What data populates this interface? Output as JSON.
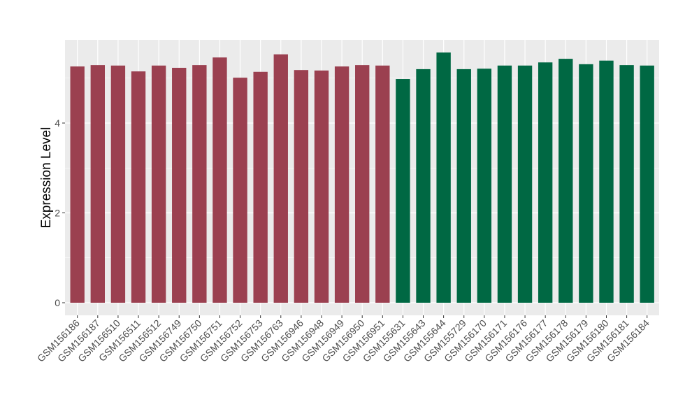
{
  "chart_data": {
    "type": "bar",
    "title": "",
    "xlabel": "",
    "ylabel": "Expression Level",
    "ylim": [
      -0.27,
      5.9
    ],
    "yticks": [
      0,
      2,
      4
    ],
    "grid": true,
    "legend": "none",
    "categories": [
      "GSM156186",
      "GSM156187",
      "GSM156510",
      "GSM156511",
      "GSM156512",
      "GSM156749",
      "GSM156750",
      "GSM156751",
      "GSM156752",
      "GSM156753",
      "GSM156763",
      "GSM156946",
      "GSM156948",
      "GSM156949",
      "GSM156950",
      "GSM156951",
      "GSM155631",
      "GSM155643",
      "GSM155644",
      "GSM155729",
      "GSM156170",
      "GSM156171",
      "GSM156176",
      "GSM156177",
      "GSM156178",
      "GSM156179",
      "GSM156180",
      "GSM156181",
      "GSM156184"
    ],
    "values": [
      5.26,
      5.29,
      5.28,
      5.15,
      5.28,
      5.23,
      5.29,
      5.46,
      5.01,
      5.14,
      5.53,
      5.18,
      5.17,
      5.26,
      5.29,
      5.28,
      4.98,
      5.2,
      5.57,
      5.2,
      5.21,
      5.28,
      5.28,
      5.35,
      5.43,
      5.31,
      5.39,
      5.29,
      5.28
    ],
    "groups": [
      0,
      0,
      0,
      0,
      0,
      0,
      0,
      0,
      0,
      0,
      0,
      0,
      0,
      0,
      0,
      0,
      1,
      1,
      1,
      1,
      1,
      1,
      1,
      1,
      1,
      1,
      1,
      1,
      1
    ],
    "colors": [
      "#9b4050",
      "#006843"
    ],
    "panel_background": "#ebebeb"
  }
}
